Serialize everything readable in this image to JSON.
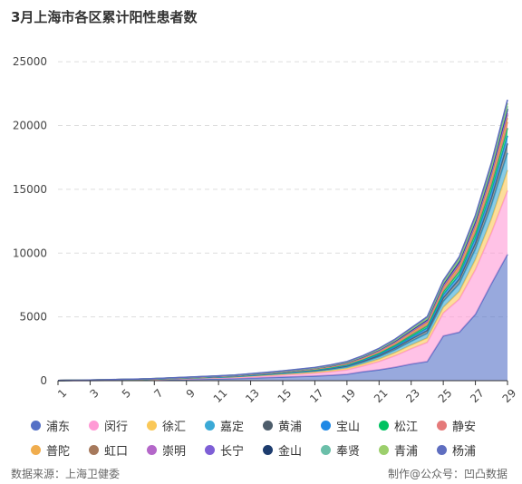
{
  "title": "3月上海市各区累计阳性患者数",
  "footer": {
    "source": "数据来源：上海卫健委",
    "credit": "制作@公众号：凹凸数据"
  },
  "chart_data": {
    "type": "area",
    "stacked": true,
    "title": "3月上海市各区累计阳性患者数",
    "x": [
      1,
      2,
      3,
      4,
      5,
      6,
      7,
      8,
      9,
      10,
      11,
      12,
      13,
      14,
      15,
      16,
      17,
      18,
      19,
      20,
      21,
      22,
      23,
      24,
      25,
      26,
      27,
      28,
      29
    ],
    "x_ticks": [
      "1",
      "3",
      "5",
      "7",
      "9",
      "11",
      "13",
      "15",
      "17",
      "19",
      "21",
      "23",
      "25",
      "27",
      "29"
    ],
    "y_ticks": [
      0,
      5000,
      10000,
      15000,
      20000,
      25000
    ],
    "ylim": [
      0,
      27000
    ],
    "grid": true,
    "legend_position": "bottom",
    "series": [
      {
        "name": "浦东",
        "color": "#5470c6",
        "values": [
          5,
          10,
          15,
          25,
          35,
          45,
          60,
          80,
          100,
          120,
          140,
          160,
          200,
          240,
          280,
          320,
          360,
          420,
          500,
          700,
          850,
          1050,
          1300,
          1500,
          3500,
          3800,
          5200,
          7600,
          9900
        ]
      },
      {
        "name": "闵行",
        "color": "#ff9ad5",
        "values": [
          3,
          6,
          10,
          15,
          20,
          25,
          35,
          45,
          55,
          65,
          75,
          90,
          110,
          130,
          160,
          190,
          230,
          280,
          350,
          450,
          650,
          900,
          1200,
          1500,
          1800,
          2600,
          3500,
          4000,
          5000
        ]
      },
      {
        "name": "徐汇",
        "color": "#fac858",
        "values": [
          2,
          3,
          5,
          8,
          10,
          12,
          15,
          20,
          25,
          30,
          35,
          40,
          50,
          60,
          70,
          80,
          90,
          110,
          130,
          160,
          200,
          250,
          300,
          350,
          450,
          600,
          800,
          1100,
          1600
        ]
      },
      {
        "name": "嘉定",
        "color": "#3ba9d6",
        "values": [
          1,
          2,
          3,
          5,
          6,
          8,
          10,
          13,
          16,
          20,
          24,
          28,
          35,
          42,
          50,
          58,
          66,
          80,
          100,
          130,
          170,
          220,
          280,
          350,
          450,
          600,
          800,
          1050,
          1350
        ]
      },
      {
        "name": "黄浦",
        "color": "#4d5d6b",
        "values": [
          1,
          2,
          3,
          4,
          5,
          6,
          8,
          10,
          12,
          15,
          18,
          22,
          27,
          32,
          38,
          45,
          52,
          62,
          75,
          95,
          120,
          150,
          190,
          240,
          300,
          380,
          480,
          600,
          750
        ]
      },
      {
        "name": "宝山",
        "color": "#1e88e5",
        "values": [
          1,
          1,
          2,
          3,
          4,
          5,
          6,
          8,
          10,
          12,
          14,
          16,
          20,
          24,
          28,
          33,
          38,
          45,
          55,
          70,
          90,
          115,
          145,
          180,
          230,
          300,
          380,
          480,
          600
        ]
      },
      {
        "name": "松江",
        "color": "#00c261",
        "values": [
          1,
          1,
          2,
          3,
          4,
          5,
          6,
          8,
          10,
          12,
          14,
          16,
          20,
          24,
          28,
          33,
          38,
          45,
          55,
          70,
          90,
          115,
          145,
          180,
          230,
          300,
          380,
          480,
          600
        ]
      },
      {
        "name": "静安",
        "color": "#e57a7a",
        "values": [
          1,
          1,
          2,
          2,
          3,
          4,
          5,
          6,
          8,
          10,
          12,
          14,
          17,
          20,
          24,
          28,
          33,
          40,
          48,
          60,
          75,
          95,
          120,
          150,
          190,
          240,
          300,
          380,
          480
        ]
      },
      {
        "name": "普陀",
        "color": "#f0ad4e",
        "values": [
          1,
          1,
          1,
          2,
          2,
          3,
          4,
          5,
          6,
          7,
          8,
          10,
          12,
          14,
          17,
          20,
          24,
          28,
          34,
          42,
          52,
          65,
          82,
          100,
          125,
          160,
          200,
          250,
          310
        ]
      },
      {
        "name": "虹口",
        "color": "#a6795c",
        "values": [
          0,
          1,
          1,
          1,
          2,
          2,
          3,
          4,
          5,
          6,
          7,
          8,
          10,
          12,
          14,
          17,
          20,
          24,
          28,
          35,
          44,
          55,
          70,
          85,
          105,
          135,
          170,
          210,
          260
        ]
      },
      {
        "name": "崇明",
        "color": "#b467c9",
        "values": [
          0,
          0,
          1,
          1,
          1,
          1,
          2,
          2,
          3,
          3,
          4,
          5,
          6,
          7,
          8,
          9,
          10,
          12,
          14,
          17,
          21,
          26,
          32,
          40,
          50,
          62,
          78,
          98,
          120
        ]
      },
      {
        "name": "长宁",
        "color": "#7e5fd6",
        "values": [
          0,
          1,
          1,
          1,
          2,
          2,
          3,
          3,
          4,
          5,
          6,
          7,
          8,
          10,
          12,
          14,
          17,
          20,
          24,
          30,
          38,
          48,
          60,
          75,
          95,
          120,
          150,
          190,
          240
        ]
      },
      {
        "name": "金山",
        "color": "#1d3c6e",
        "values": [
          0,
          0,
          1,
          1,
          1,
          1,
          2,
          2,
          3,
          3,
          4,
          5,
          6,
          7,
          8,
          9,
          10,
          12,
          14,
          17,
          21,
          26,
          32,
          40,
          50,
          62,
          78,
          98,
          120
        ]
      },
      {
        "name": "奉贤",
        "color": "#6bbfa9",
        "values": [
          0,
          1,
          1,
          1,
          1,
          2,
          2,
          3,
          3,
          4,
          5,
          6,
          7,
          8,
          10,
          12,
          14,
          17,
          20,
          25,
          31,
          39,
          49,
          62,
          78,
          98,
          122,
          152,
          190
        ]
      },
      {
        "name": "青浦",
        "color": "#9ccf6c",
        "values": [
          0,
          1,
          1,
          1,
          2,
          2,
          3,
          3,
          4,
          5,
          6,
          7,
          8,
          10,
          12,
          14,
          17,
          20,
          24,
          30,
          38,
          48,
          60,
          75,
          95,
          120,
          150,
          190,
          240
        ]
      },
      {
        "name": "杨浦",
        "color": "#5f6ec0",
        "values": [
          0,
          1,
          1,
          2,
          2,
          3,
          3,
          4,
          5,
          6,
          7,
          8,
          10,
          12,
          14,
          17,
          20,
          24,
          28,
          35,
          44,
          55,
          70,
          85,
          105,
          135,
          170,
          210,
          260
        ]
      }
    ]
  }
}
